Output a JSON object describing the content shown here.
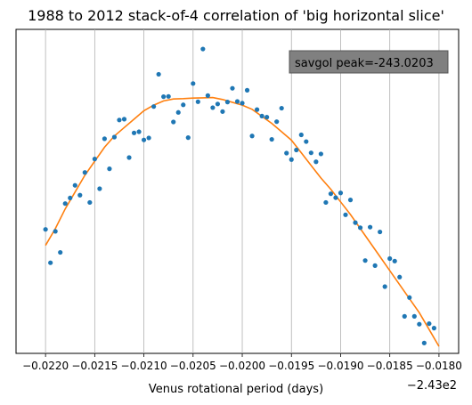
{
  "chart_data": {
    "type": "scatter",
    "title": "1988 to 2012 stack-of-4 correlation of 'big horizontal slice'",
    "xlabel": "Venus rotational period (days)",
    "ylabel": "",
    "x_offset_label": "−2.43e2",
    "annotation": "savgol peak=-243.0203",
    "xlim": [
      -243.0223,
      -243.0178
    ],
    "ylim": [
      0,
      1
    ],
    "grid": "x-only",
    "x_ticks": [
      {
        "value": -243.022,
        "label": "−0.0220"
      },
      {
        "value": -243.0215,
        "label": "−0.0215"
      },
      {
        "value": -243.021,
        "label": "−0.0210"
      },
      {
        "value": -243.0205,
        "label": "−0.0205"
      },
      {
        "value": -243.02,
        "label": "−0.0200"
      },
      {
        "value": -243.0195,
        "label": "−0.0195"
      },
      {
        "value": -243.019,
        "label": "−0.0190"
      },
      {
        "value": -243.0185,
        "label": "−0.0185"
      },
      {
        "value": -243.018,
        "label": "−0.0180"
      }
    ],
    "series": [
      {
        "kind": "scatter",
        "color": "#1f77b4",
        "points": [
          [
            -243.022,
            0.357
          ],
          [
            -243.02195,
            0.238
          ],
          [
            -243.0219,
            0.35
          ],
          [
            -243.02185,
            0.275
          ],
          [
            -243.0218,
            0.449
          ],
          [
            -243.02175,
            0.469
          ],
          [
            -243.0217,
            0.514
          ],
          [
            -243.02165,
            0.479
          ],
          [
            -243.0216,
            0.56
          ],
          [
            -243.02155,
            0.453
          ],
          [
            -243.0215,
            0.608
          ],
          [
            -243.02145,
            0.502
          ],
          [
            -243.0214,
            0.68
          ],
          [
            -243.02135,
            0.573
          ],
          [
            -243.0213,
            0.686
          ],
          [
            -243.02125,
            0.747
          ],
          [
            -243.0212,
            0.75
          ],
          [
            -243.02115,
            0.613
          ],
          [
            -243.0211,
            0.701
          ],
          [
            -243.02105,
            0.705
          ],
          [
            -243.021,
            0.676
          ],
          [
            -243.02095,
            0.683
          ],
          [
            -243.0209,
            0.795
          ],
          [
            -243.02085,
            0.91
          ],
          [
            -243.0208,
            0.83
          ],
          [
            -243.02075,
            0.831
          ],
          [
            -243.0207,
            0.74
          ],
          [
            -243.02065,
            0.774
          ],
          [
            -243.0206,
            0.801
          ],
          [
            -243.02055,
            0.684
          ],
          [
            -243.0205,
            0.877
          ],
          [
            -243.02045,
            0.812
          ],
          [
            -243.0204,
            1.0
          ],
          [
            -243.02035,
            0.834
          ],
          [
            -243.0203,
            0.791
          ],
          [
            -243.02025,
            0.804
          ],
          [
            -243.0202,
            0.777
          ],
          [
            -243.02015,
            0.811
          ],
          [
            -243.0201,
            0.86
          ],
          [
            -243.02005,
            0.813
          ],
          [
            -243.02,
            0.807
          ],
          [
            -243.01995,
            0.853
          ],
          [
            -243.0199,
            0.69
          ],
          [
            -243.01985,
            0.784
          ],
          [
            -243.0198,
            0.761
          ],
          [
            -243.01975,
            0.757
          ],
          [
            -243.0197,
            0.678
          ],
          [
            -243.01965,
            0.741
          ],
          [
            -243.0196,
            0.789
          ],
          [
            -243.01955,
            0.629
          ],
          [
            -243.0195,
            0.606
          ],
          [
            -243.01945,
            0.64
          ],
          [
            -243.0194,
            0.694
          ],
          [
            -243.01935,
            0.67
          ],
          [
            -243.0193,
            0.63
          ],
          [
            -243.01925,
            0.598
          ],
          [
            -243.0192,
            0.626
          ],
          [
            -243.01915,
            0.453
          ],
          [
            -243.0191,
            0.484
          ],
          [
            -243.01905,
            0.47
          ],
          [
            -243.019,
            0.487
          ],
          [
            -243.01895,
            0.409
          ],
          [
            -243.0189,
            0.462
          ],
          [
            -243.01885,
            0.381
          ],
          [
            -243.0188,
            0.363
          ],
          [
            -243.01875,
            0.246
          ],
          [
            -243.0187,
            0.365
          ],
          [
            -243.01865,
            0.228
          ],
          [
            -243.0186,
            0.348
          ],
          [
            -243.01855,
            0.153
          ],
          [
            -243.0185,
            0.253
          ],
          [
            -243.01845,
            0.244
          ],
          [
            -243.0184,
            0.187
          ],
          [
            -243.01835,
            0.047
          ],
          [
            -243.0183,
            0.114
          ],
          [
            -243.01825,
            0.047
          ],
          [
            -243.0182,
            0.019
          ],
          [
            -243.01815,
            -0.048
          ],
          [
            -243.0181,
            0.021
          ],
          [
            -243.01805,
            0.005
          ]
        ]
      },
      {
        "kind": "line",
        "color": "#ff7f0e",
        "points": [
          [
            -243.022,
            0.3
          ],
          [
            -243.0219,
            0.36
          ],
          [
            -243.0218,
            0.43
          ],
          [
            -243.0217,
            0.49
          ],
          [
            -243.0216,
            0.55
          ],
          [
            -243.0215,
            0.6
          ],
          [
            -243.0214,
            0.65
          ],
          [
            -243.0213,
            0.69
          ],
          [
            -243.0212,
            0.72
          ],
          [
            -243.0211,
            0.75
          ],
          [
            -243.021,
            0.78
          ],
          [
            -243.0209,
            0.8
          ],
          [
            -243.0208,
            0.815
          ],
          [
            -243.0207,
            0.822
          ],
          [
            -243.0206,
            0.823
          ],
          [
            -243.0205,
            0.825
          ],
          [
            -243.0204,
            0.826
          ],
          [
            -243.0203,
            0.827
          ],
          [
            -243.0202,
            0.82
          ],
          [
            -243.0201,
            0.81
          ],
          [
            -243.02,
            0.8
          ],
          [
            -243.0199,
            0.785
          ],
          [
            -243.0198,
            0.76
          ],
          [
            -243.0197,
            0.735
          ],
          [
            -243.0196,
            0.705
          ],
          [
            -243.0195,
            0.675
          ],
          [
            -243.0194,
            0.63
          ],
          [
            -243.0193,
            0.585
          ],
          [
            -243.0192,
            0.54
          ],
          [
            -243.0191,
            0.5
          ],
          [
            -243.019,
            0.455
          ],
          [
            -243.0189,
            0.41
          ],
          [
            -243.0188,
            0.36
          ],
          [
            -243.0187,
            0.31
          ],
          [
            -243.0186,
            0.26
          ],
          [
            -243.0185,
            0.21
          ],
          [
            -243.0184,
            0.16
          ],
          [
            -243.0183,
            0.11
          ],
          [
            -243.0182,
            0.06
          ],
          [
            -243.0181,
            0.0
          ],
          [
            -243.018,
            -0.06
          ]
        ]
      }
    ]
  }
}
